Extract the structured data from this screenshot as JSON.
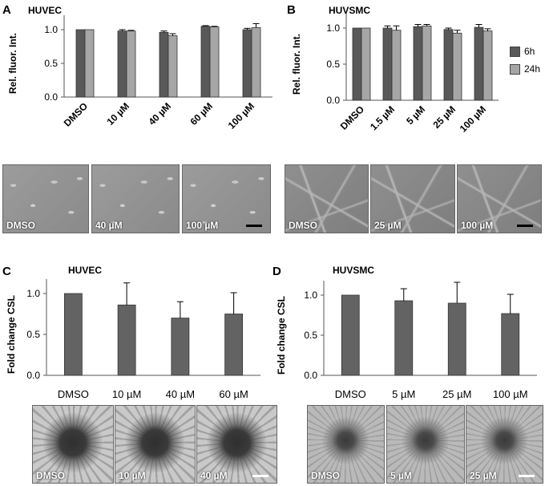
{
  "colors": {
    "bar_6h": "#595959",
    "bar_24h": "#a6a6a6",
    "bar_csl": "#636363",
    "error": "#000000"
  },
  "panels": {
    "A": {
      "label": "A",
      "title": "HUVEC"
    },
    "B": {
      "label": "B",
      "title": "HUVSMC"
    },
    "C": {
      "label": "C",
      "title": "HUVEC"
    },
    "D": {
      "label": "D",
      "title": "HUVSMC"
    }
  },
  "legend": {
    "items": [
      "6h",
      "24h"
    ]
  },
  "micrographs": {
    "A": [
      "DMSO",
      "40 µM",
      "100 µM"
    ],
    "B": [
      "DMSO",
      "25 µM",
      "100 µM"
    ],
    "C": [
      "DMSO",
      "10 µM",
      "40 µM"
    ],
    "D": [
      "DMSO",
      "5 µM",
      "25 µM"
    ]
  },
  "chart_data": [
    {
      "id": "A",
      "type": "bar",
      "title": "HUVEC",
      "ylabel": "Rel. fluor. Int.",
      "xlabel": "",
      "ylim": [
        0,
        1.0
      ],
      "yticks": [
        "0.0",
        "0.5",
        "1.0"
      ],
      "categories": [
        "DMSO",
        "10 µM",
        "40 µM",
        "60 µM",
        "100 µM"
      ],
      "series": [
        {
          "name": "6h",
          "values": [
            1.0,
            0.98,
            0.96,
            1.05,
            1.0
          ],
          "errors": [
            0.0,
            0.02,
            0.02,
            0.01,
            0.02
          ]
        },
        {
          "name": "24h",
          "values": [
            1.0,
            0.98,
            0.91,
            1.04,
            1.03
          ],
          "errors": [
            0.0,
            0.01,
            0.03,
            0.01,
            0.06
          ]
        }
      ]
    },
    {
      "id": "B",
      "type": "bar",
      "title": "HUVSMC",
      "ylabel": "Rel. fluor. Int.",
      "xlabel": "",
      "ylim": [
        0,
        1.0
      ],
      "yticks": [
        "0.0",
        "0.5",
        "1.0"
      ],
      "categories": [
        "DMSO",
        "1.5 µM",
        "5 µM",
        "25 µM",
        "100 µM"
      ],
      "series": [
        {
          "name": "6h",
          "values": [
            1.0,
            1.0,
            1.02,
            0.98,
            1.01
          ],
          "errors": [
            0.0,
            0.03,
            0.03,
            0.02,
            0.04
          ]
        },
        {
          "name": "24h",
          "values": [
            1.0,
            0.97,
            1.03,
            0.93,
            0.96
          ],
          "errors": [
            0.0,
            0.06,
            0.02,
            0.04,
            0.03
          ]
        }
      ]
    },
    {
      "id": "C",
      "type": "bar",
      "title": "HUVEC",
      "ylabel": "Fold change CSL",
      "xlabel": "",
      "ylim": [
        0,
        1.0
      ],
      "yticks": [
        "0.0",
        "0.5",
        "1.0"
      ],
      "categories": [
        "DMSO",
        "10 µM",
        "40 µM",
        "60 µM"
      ],
      "series": [
        {
          "values": [
            1.0,
            0.86,
            0.7,
            0.75
          ],
          "errors": [
            0.0,
            0.27,
            0.2,
            0.26
          ]
        }
      ]
    },
    {
      "id": "D",
      "type": "bar",
      "title": "HUVSMC",
      "ylabel": "Fold change CSL",
      "xlabel": "",
      "ylim": [
        0,
        1.0
      ],
      "yticks": [
        "0.0",
        "0.5",
        "1.0"
      ],
      "categories": [
        "DMSO",
        "5 µM",
        "25 µM",
        "100 µM"
      ],
      "series": [
        {
          "values": [
            1.0,
            0.93,
            0.9,
            0.77
          ],
          "errors": [
            0.0,
            0.15,
            0.26,
            0.24
          ]
        }
      ]
    }
  ]
}
